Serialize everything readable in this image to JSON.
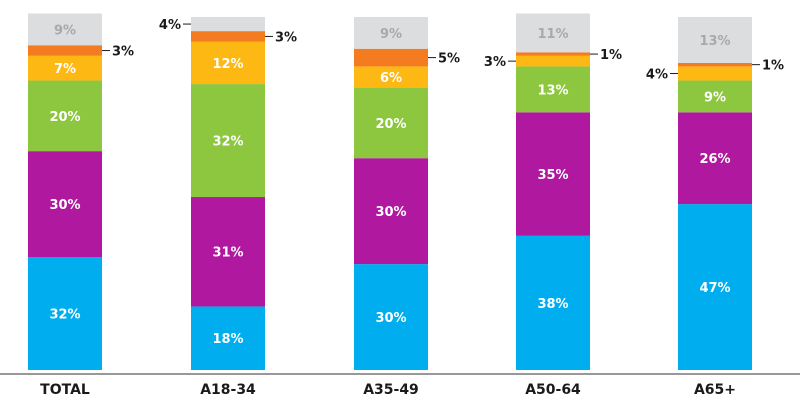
{
  "chart_data": {
    "type": "bar",
    "stacked": true,
    "categories": [
      "TOTAL",
      "A18-34",
      "A35-49",
      "A50-64",
      "A65+"
    ],
    "series": [
      {
        "color": "#00aeef",
        "values": [
          32,
          18,
          30,
          38,
          47
        ],
        "labels": [
          "32%",
          "18%",
          "30%",
          "38%",
          "47%"
        ]
      },
      {
        "color": "#b0189f",
        "values": [
          30,
          31,
          30,
          35,
          26
        ],
        "labels": [
          "30%",
          "31%",
          "30%",
          "35%",
          "26%"
        ]
      },
      {
        "color": "#8dc63f",
        "values": [
          20,
          32,
          20,
          13,
          9
        ],
        "labels": [
          "20%",
          "32%",
          "20%",
          "13%",
          "9%"
        ]
      },
      {
        "color": "#fdb813",
        "values": [
          7,
          12,
          6,
          3,
          4
        ],
        "labels": [
          "7%",
          "12%",
          "6%",
          "3%",
          "4%"
        ]
      },
      {
        "color": "#f47b20",
        "values": [
          3,
          3,
          5,
          1,
          1
        ],
        "labels": [
          "3%",
          "3%",
          "5%",
          "1%",
          "1%"
        ]
      },
      {
        "color": "#dcdddf",
        "values": [
          9,
          4,
          9,
          11,
          13
        ],
        "labels": [
          "9%",
          "4%",
          "9%",
          "11%",
          "13%"
        ]
      }
    ],
    "ylim": [
      0,
      100
    ],
    "grid": false,
    "legend": "none"
  }
}
